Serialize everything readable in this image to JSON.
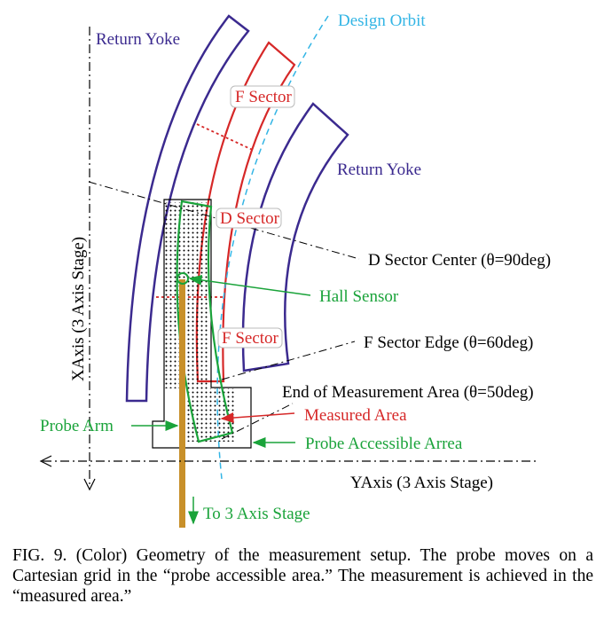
{
  "diagram": {
    "labels": {
      "design_orbit": "Design Orbit",
      "return_yoke_left": "Return Yoke",
      "return_yoke_right": "Return Yoke",
      "f_sector_top": "F Sector",
      "d_sector": "D Sector",
      "f_sector_bottom": "F Sector",
      "d_sector_center": "D Sector Center (θ=90deg)",
      "hall_sensor": "Hall Sensor",
      "f_sector_edge": "F Sector Edge (θ=60deg)",
      "end_measurement": "End of Measurement Area (θ=50deg)",
      "measured_area": "Measured Area",
      "probe_arm": "Probe Arm",
      "probe_accessible": "Probe Accessible Arrea",
      "y_axis": "YAxis (3 Axis Stage)",
      "x_axis": "XAxis (3 Axis Stage)",
      "to_stage": "To 3 Axis Stage"
    },
    "colors": {
      "yoke": "#3b2a8f",
      "sector": "#d62828",
      "orbit": "#33b5e5",
      "probe_area": "#1aa33a",
      "probe_arm": "#c8902a",
      "axis": "#000000"
    }
  },
  "caption": {
    "text": "FIG. 9. (Color) Geometry of the measurement setup. The probe moves on a Cartesian grid in the “probe accessible area.” The measurement is achieved in the “measured area.”"
  }
}
